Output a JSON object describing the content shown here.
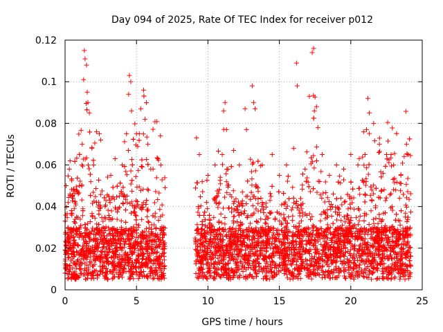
{
  "chart_data": {
    "type": "scatter",
    "title": "Day 094 of 2025, Rate Of TEC Index for receiver p012",
    "xlabel": "GPS time / hours",
    "ylabel": "ROTI / TECUs",
    "xlim": [
      0,
      25
    ],
    "ylim": [
      0,
      0.12
    ],
    "xticks": [
      0,
      5,
      10,
      15,
      20,
      25
    ],
    "xtick_labels": [
      "0",
      "5",
      "10",
      "15",
      "20",
      "25"
    ],
    "yticks": [
      0,
      0.02,
      0.04,
      0.06,
      0.08,
      0.1,
      0.12
    ],
    "ytick_labels": [
      "0",
      "0.02",
      "0.04",
      "0.06",
      "0.08",
      "0.1",
      "0.12"
    ],
    "grid": true,
    "marker": "+",
    "color": "#ff0000",
    "data_gap_hours": [
      7.0,
      9.1
    ],
    "series": [
      {
        "points": [
          [
            0.1,
            0.012
          ],
          [
            0.2,
            0.03
          ],
          [
            0.3,
            0.058
          ],
          [
            0.35,
            0.062
          ],
          [
            0.5,
            0.045
          ],
          [
            0.6,
            0.02
          ],
          [
            0.8,
            0.035
          ],
          [
            1.0,
            0.05
          ],
          [
            1.2,
            0.07
          ],
          [
            1.3,
            0.101
          ],
          [
            1.35,
            0.115
          ],
          [
            1.4,
            0.111
          ],
          [
            1.5,
            0.108
          ],
          [
            1.55,
            0.095
          ],
          [
            1.6,
            0.09
          ],
          [
            1.7,
            0.085
          ],
          [
            1.8,
            0.052
          ],
          [
            2.0,
            0.06
          ],
          [
            2.2,
            0.076
          ],
          [
            2.4,
            0.075
          ],
          [
            2.5,
            0.072
          ],
          [
            2.8,
            0.04
          ],
          [
            3.2,
            0.055
          ],
          [
            3.5,
            0.063
          ],
          [
            3.8,
            0.045
          ],
          [
            4.0,
            0.06
          ],
          [
            4.3,
            0.075
          ],
          [
            4.45,
            0.094
          ],
          [
            4.5,
            0.103
          ],
          [
            4.6,
            0.1
          ],
          [
            4.65,
            0.086
          ],
          [
            5.0,
            0.075
          ],
          [
            5.2,
            0.075
          ],
          [
            5.3,
            0.087
          ],
          [
            5.5,
            0.096
          ],
          [
            5.6,
            0.082
          ],
          [
            5.8,
            0.07
          ],
          [
            6.0,
            0.058
          ],
          [
            6.3,
            0.035
          ],
          [
            6.5,
            0.063
          ],
          [
            6.7,
            0.06
          ],
          [
            6.9,
            0.03
          ],
          [
            9.2,
            0.073
          ],
          [
            9.4,
            0.065
          ],
          [
            9.6,
            0.052
          ],
          [
            10.0,
            0.055
          ],
          [
            10.5,
            0.06
          ],
          [
            11.0,
            0.065
          ],
          [
            11.1,
            0.086
          ],
          [
            11.2,
            0.09
          ],
          [
            11.3,
            0.077
          ],
          [
            11.8,
            0.067
          ],
          [
            12.2,
            0.06
          ],
          [
            12.6,
            0.087
          ],
          [
            12.7,
            0.077
          ],
          [
            13.1,
            0.098
          ],
          [
            13.2,
            0.09
          ],
          [
            13.3,
            0.087
          ],
          [
            13.8,
            0.06
          ],
          [
            14.5,
            0.065
          ],
          [
            15.0,
            0.055
          ],
          [
            15.5,
            0.06
          ],
          [
            16.0,
            0.068
          ],
          [
            16.2,
            0.109
          ],
          [
            16.25,
            0.098
          ],
          [
            16.8,
            0.058
          ],
          [
            17.1,
            0.093
          ],
          [
            17.3,
            0.114
          ],
          [
            17.4,
            0.116
          ],
          [
            17.45,
            0.086
          ],
          [
            17.6,
            0.088
          ],
          [
            17.7,
            0.078
          ],
          [
            18.0,
            0.065
          ],
          [
            18.5,
            0.055
          ],
          [
            19.0,
            0.06
          ],
          [
            19.5,
            0.058
          ],
          [
            20.0,
            0.065
          ],
          [
            20.5,
            0.06
          ],
          [
            21.0,
            0.065
          ],
          [
            21.1,
            0.077
          ],
          [
            21.2,
            0.092
          ],
          [
            21.3,
            0.085
          ],
          [
            21.6,
            0.08
          ],
          [
            22.0,
            0.07
          ],
          [
            22.5,
            0.065
          ],
          [
            23.0,
            0.06
          ],
          [
            23.5,
            0.055
          ],
          [
            23.9,
            0.07
          ],
          [
            24.0,
            0.065
          ]
        ]
      }
    ]
  }
}
